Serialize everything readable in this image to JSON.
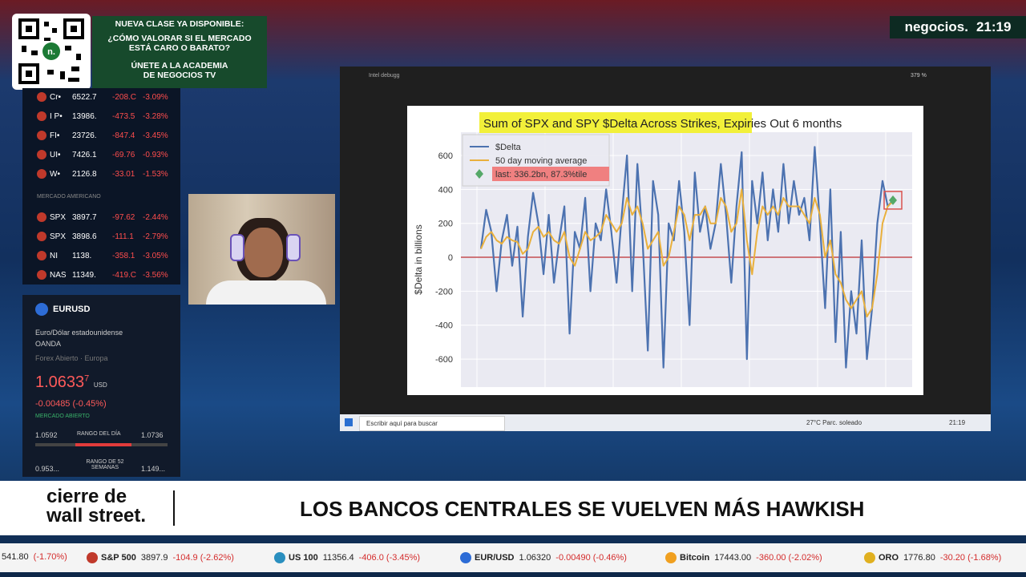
{
  "promo": {
    "lines": [
      "NUEVA CLASE YA DISPONIBLE:",
      "¿CÓMO VALORAR SI EL MERCADO",
      "ESTÁ CARO O BARATO?",
      "ÚNETE A LA ACADEMIA",
      "DE NEGOCIOS TV"
    ]
  },
  "brand": {
    "name": "negocios.",
    "time": "21:19"
  },
  "markets": {
    "rows_top": [
      {
        "name": "Cr•",
        "price": "6522.7",
        "change": "-208.C",
        "pct": "-3.09%"
      },
      {
        "name": "I P•",
        "price": "13986.",
        "change": "-473.5",
        "pct": "-3.28%"
      },
      {
        "name": "FI•",
        "price": "23726.",
        "change": "-847.4",
        "pct": "-3.45%"
      },
      {
        "name": "UI•",
        "price": "7426.1",
        "change": "-69.76",
        "pct": "-0.93%"
      },
      {
        "name": "W•",
        "price": "2126.8",
        "change": "-33.01",
        "pct": "-1.53%"
      }
    ],
    "section": "MERCADO AMERICANO",
    "rows_us": [
      {
        "name": "SPX",
        "price": "3897.7",
        "change": "-97.62",
        "pct": "-2.44%"
      },
      {
        "name": "SPX",
        "price": "3898.6",
        "change": "-111.1",
        "pct": "-2.79%"
      },
      {
        "name": "NI",
        "price": "1138.",
        "change": "-358.1",
        "pct": "-3.05%"
      },
      {
        "name": "NAS",
        "price": "11349.",
        "change": "-419.C",
        "pct": "-3.56%"
      }
    ]
  },
  "quote": {
    "symbol": "EURUSD",
    "description": "Euro/Dólar estadounidense",
    "source": "OANDA",
    "status_line": "Forex Abierto · Europa",
    "price": "1.0633",
    "price_sup": "7",
    "currency": "USD",
    "change": "-0.00485 (-0.45%)",
    "market": "MERCADO ABIERTO",
    "day_low": "1.0592",
    "day_label": "RANGO DEL DÍA",
    "day_high": "1.0736",
    "year_low": "0.953...",
    "year_label": "RANGO DE 52 SEMANAS",
    "year_high": "1.149..."
  },
  "screen": {
    "window_title": "Intel debugg",
    "zoom": "379 %",
    "search": "Escribir aquí para buscar",
    "weather": "27°C Parc. soleado",
    "clock": "21:19"
  },
  "chart_data": {
    "type": "line",
    "title": "Sum of SPX and SPY $Delta Across Strikes,",
    "title_suffix": "Expiries Out 6 months",
    "ylabel": "$Delta in billions",
    "ylim": [
      -765,
      737
    ],
    "yticks": [
      -600,
      -400,
      -200,
      0,
      200,
      400,
      600
    ],
    "grid": true,
    "background": "#eaeaf2",
    "hline": {
      "value": 0,
      "color": "#c44e52"
    },
    "series": [
      {
        "name": "$Delta",
        "color": "#4c72b0",
        "values": [
          50,
          280,
          150,
          -200,
          100,
          250,
          -50,
          180,
          -350,
          120,
          380,
          200,
          -100,
          250,
          -150,
          100,
          300,
          -450,
          150,
          50,
          350,
          -200,
          200,
          100,
          400,
          150,
          -150,
          250,
          600,
          -200,
          550,
          100,
          -550,
          450,
          250,
          -650,
          200,
          100,
          450,
          150,
          -400,
          500,
          150,
          300,
          50,
          200,
          550,
          250,
          -150,
          300,
          620,
          -600,
          450,
          200,
          500,
          100,
          400,
          150,
          550,
          200,
          450,
          250,
          350,
          100,
          650,
          200,
          -300,
          400,
          -500,
          150,
          -650,
          -200,
          -450,
          100,
          -600,
          -300,
          200,
          450,
          300,
          336.2
        ]
      },
      {
        "name": "50 day moving average",
        "color": "#e9b03c",
        "values": [
          50,
          120,
          150,
          100,
          80,
          120,
          100,
          90,
          20,
          50,
          150,
          180,
          120,
          150,
          100,
          80,
          150,
          0,
          -50,
          50,
          150,
          100,
          120,
          150,
          250,
          200,
          150,
          200,
          350,
          250,
          300,
          200,
          50,
          100,
          150,
          -50,
          0,
          150,
          300,
          250,
          100,
          250,
          250,
          300,
          200,
          200,
          350,
          300,
          150,
          200,
          400,
          100,
          -100,
          150,
          300,
          250,
          300,
          250,
          350,
          300,
          300,
          300,
          250,
          200,
          350,
          250,
          0,
          100,
          -100,
          -150,
          -250,
          -300,
          -250,
          -200,
          -350,
          -300,
          -100,
          200,
          300,
          330
        ]
      }
    ],
    "last": {
      "label": "last: 336.2bn, 87.3%tile",
      "color": "#55a868",
      "highlight": "#f08080"
    }
  },
  "banner": {
    "show": [
      "cierre de",
      "wall street."
    ],
    "headline": "LOS BANCOS CENTRALES SE VUELVEN MÁS HAWKISH"
  },
  "ticker": [
    {
      "name": "",
      "price": "541.80",
      "change": "(-1.70%)"
    },
    {
      "name": "S&P 500",
      "price": "3897.9",
      "change": "-104.9 (-2.62%)"
    },
    {
      "name": "US 100",
      "price": "11356.4",
      "change": "-406.0 (-3.45%)"
    },
    {
      "name": "EUR/USD",
      "price": "1.06320",
      "change": "-0.00490 (-0.46%)"
    },
    {
      "name": "Bitcoin",
      "price": "17443.00",
      "change": "-360.00 (-2.02%)"
    },
    {
      "name": "ORO",
      "price": "1776.80",
      "change": "-30.20 (-1.68%)"
    }
  ]
}
